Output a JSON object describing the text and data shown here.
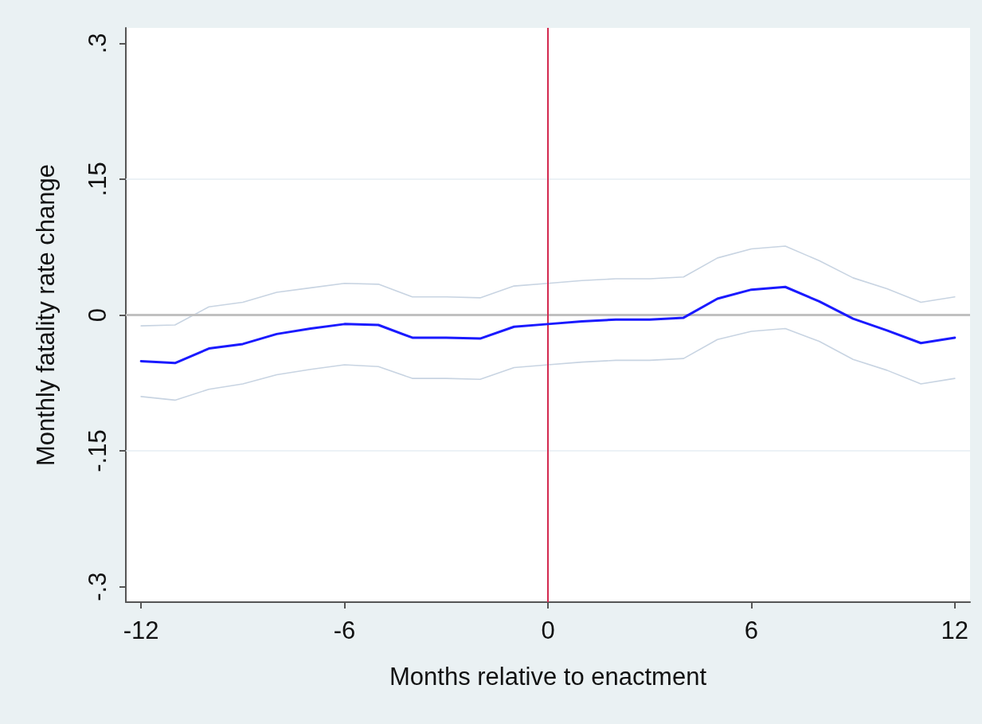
{
  "chart_data": {
    "type": "line",
    "xlabel": "Months relative to enactment",
    "ylabel": "Monthly fatality rate change",
    "x": [
      -12,
      -11,
      -10,
      -9,
      -8,
      -7,
      -6,
      -5,
      -4,
      -3,
      -2,
      -1,
      0,
      1,
      2,
      3,
      4,
      5,
      6,
      7,
      8,
      9,
      10,
      11,
      12
    ],
    "series": [
      {
        "color": "#c8d4e2",
        "values": [
          -0.012,
          -0.011,
          0.009,
          0.014,
          0.025,
          0.03,
          0.035,
          0.034,
          0.02,
          0.02,
          0.019,
          0.032,
          0.035,
          0.038,
          0.04,
          0.04,
          0.042,
          0.063,
          0.073,
          0.076,
          0.06,
          0.041,
          0.029,
          0.014,
          0.02
        ]
      },
      {
        "color": "#1a1aff",
        "values": [
          -0.051,
          -0.053,
          -0.037,
          -0.032,
          -0.021,
          -0.015,
          -0.01,
          -0.011,
          -0.025,
          -0.025,
          -0.026,
          -0.013,
          -0.01,
          -0.007,
          -0.005,
          -0.005,
          -0.003,
          0.018,
          0.028,
          0.031,
          0.015,
          -0.004,
          -0.017,
          -0.031,
          -0.025
        ]
      },
      {
        "color": "#c8d4e2",
        "values": [
          -0.09,
          -0.094,
          -0.082,
          -0.076,
          -0.066,
          -0.06,
          -0.055,
          -0.057,
          -0.07,
          -0.07,
          -0.071,
          -0.058,
          -0.055,
          -0.052,
          -0.05,
          -0.05,
          -0.048,
          -0.027,
          -0.018,
          -0.015,
          -0.029,
          -0.049,
          -0.061,
          -0.076,
          -0.07
        ]
      }
    ],
    "xlim": [
      -12.45,
      12.45
    ],
    "xticks": [
      -12,
      -6,
      0,
      6,
      12
    ],
    "ylim": [
      -0.317,
      0.317
    ],
    "yticks": [
      {
        "value": -0.3,
        "label": "-.3"
      },
      {
        "value": -0.15,
        "label": "-.15"
      },
      0,
      {
        "value": 0.15,
        "label": ".15"
      },
      {
        "value": 0.3,
        "label": ".3"
      }
    ],
    "ref_lines": [
      {
        "axis": "y",
        "value": 0,
        "color": "#c0c0c0"
      },
      {
        "axis": "x",
        "value": 0,
        "color": "#d3294f"
      }
    ],
    "grid": "y",
    "marker": "none",
    "line_style": "solid"
  }
}
